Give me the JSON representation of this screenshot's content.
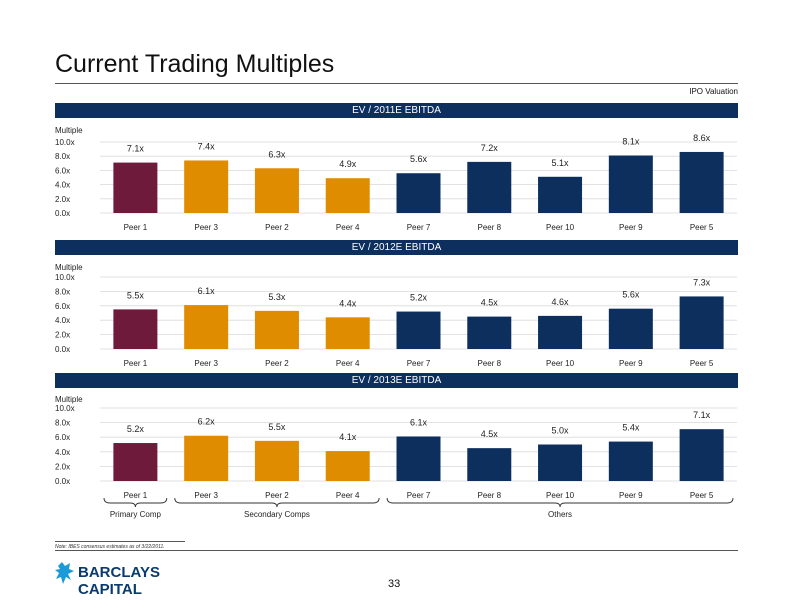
{
  "header": {
    "title": "Current Trading Multiples",
    "subtitle": "IPO Valuation"
  },
  "colors": {
    "primary": "#6e1a3b",
    "secondary": "#e08c00",
    "others": "#0d2f5e",
    "band": "#0d2f5e"
  },
  "chart_data": [
    {
      "type": "bar",
      "title": "EV / 2011E EBITDA",
      "ylabel": "Multiple",
      "ylim": [
        0,
        10
      ],
      "yticks": [
        "0.0x",
        "2.0x",
        "4.0x",
        "6.0x",
        "8.0x",
        "10.0x"
      ],
      "categories": [
        "Peer 1",
        "Peer 3",
        "Peer 2",
        "Peer 4",
        "Peer 7",
        "Peer 8",
        "Peer 10",
        "Peer 9",
        "Peer 5"
      ],
      "values": [
        7.1,
        7.4,
        6.3,
        4.9,
        5.6,
        7.2,
        5.1,
        8.1,
        8.6
      ],
      "labels": [
        "7.1x",
        "7.4x",
        "6.3x",
        "4.9x",
        "5.6x",
        "7.2x",
        "5.1x",
        "8.1x",
        "8.6x"
      ],
      "groups": [
        "primary",
        "secondary",
        "secondary",
        "secondary",
        "others",
        "others",
        "others",
        "others",
        "others"
      ],
      "grid": true
    },
    {
      "type": "bar",
      "title": "EV / 2012E EBITDA",
      "ylabel": "Multiple",
      "ylim": [
        0,
        10
      ],
      "yticks": [
        "0.0x",
        "2.0x",
        "4.0x",
        "6.0x",
        "8.0x",
        "10.0x"
      ],
      "categories": [
        "Peer 1",
        "Peer 3",
        "Peer 2",
        "Peer 4",
        "Peer 7",
        "Peer 8",
        "Peer 10",
        "Peer 9",
        "Peer 5"
      ],
      "values": [
        5.5,
        6.1,
        5.3,
        4.4,
        5.2,
        4.5,
        4.6,
        5.6,
        7.3
      ],
      "labels": [
        "5.5x",
        "6.1x",
        "5.3x",
        "4.4x",
        "5.2x",
        "4.5x",
        "4.6x",
        "5.6x",
        "7.3x"
      ],
      "groups": [
        "primary",
        "secondary",
        "secondary",
        "secondary",
        "others",
        "others",
        "others",
        "others",
        "others"
      ],
      "grid": true
    },
    {
      "type": "bar",
      "title": "EV / 2013E EBITDA",
      "ylabel": "Multiple",
      "ylim": [
        0,
        10
      ],
      "yticks": [
        "0.0x",
        "2.0x",
        "4.0x",
        "6.0x",
        "8.0x",
        "10.0x"
      ],
      "categories": [
        "Peer 1",
        "Peer 3",
        "Peer 2",
        "Peer 4",
        "Peer 7",
        "Peer 8",
        "Peer 10",
        "Peer 9",
        "Peer 5"
      ],
      "values": [
        5.2,
        6.2,
        5.5,
        4.1,
        6.1,
        4.5,
        5.0,
        5.4,
        7.1
      ],
      "labels": [
        "5.2x",
        "6.2x",
        "5.5x",
        "4.1x",
        "6.1x",
        "4.5x",
        "5.0x",
        "5.4x",
        "7.1x"
      ],
      "groups": [
        "primary",
        "secondary",
        "secondary",
        "secondary",
        "others",
        "others",
        "others",
        "others",
        "others"
      ],
      "grid": true
    }
  ],
  "group_labels": [
    "Primary Comp",
    "Secondary Comps",
    "Others"
  ],
  "footer": {
    "note": "Note: IBES consensus estimates as of 3/22/2011.",
    "page_number": "33",
    "logo_line1": "BARCLAYS",
    "logo_line2": "CAPITAL"
  }
}
